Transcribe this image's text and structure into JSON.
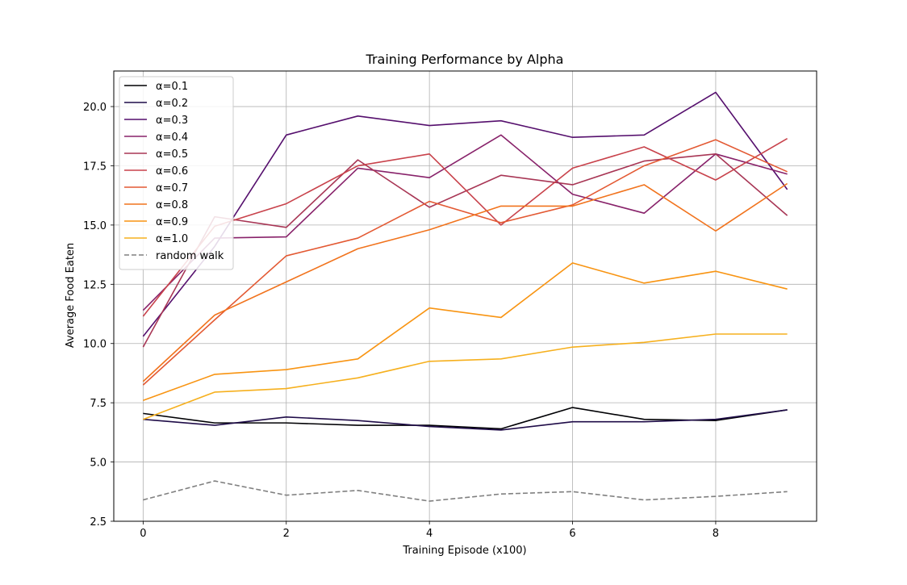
{
  "chart_data": {
    "type": "line",
    "title": "Training Performance by Alpha",
    "xlabel": "Training Episode (x100)",
    "ylabel": "Average Food Eaten",
    "x": [
      0,
      1,
      2,
      3,
      4,
      5,
      6,
      7,
      8,
      9
    ],
    "xlim": [
      -0.41,
      9.41
    ],
    "ylim": [
      2.5,
      21.5
    ],
    "xticks": [
      0,
      2,
      4,
      6,
      8
    ],
    "yticks": [
      2.5,
      5.0,
      7.5,
      10.0,
      12.5,
      15.0,
      17.5,
      20.0
    ],
    "grid": true,
    "legend_position": "top-left",
    "series": [
      {
        "name": "α=0.1",
        "color": "#000004",
        "dashed": false,
        "values": [
          7.05,
          6.65,
          6.65,
          6.55,
          6.55,
          6.4,
          7.3,
          6.8,
          6.75,
          7.2
        ]
      },
      {
        "name": "α=0.2",
        "color": "#1f0c48",
        "dashed": false,
        "values": [
          6.8,
          6.55,
          6.9,
          6.75,
          6.5,
          6.35,
          6.7,
          6.7,
          6.8,
          7.2
        ]
      },
      {
        "name": "α=0.3",
        "color": "#550f6d",
        "dashed": false,
        "values": [
          10.3,
          14.1,
          18.8,
          19.6,
          19.2,
          19.4,
          18.7,
          18.8,
          20.6,
          16.5
        ]
      },
      {
        "name": "α=0.4",
        "color": "#88226a",
        "dashed": false,
        "values": [
          11.4,
          14.45,
          14.5,
          17.4,
          17.0,
          18.8,
          16.3,
          15.5,
          18.0,
          17.15
        ]
      },
      {
        "name": "α=0.5",
        "color": "#a83655",
        "dashed": false,
        "values": [
          9.85,
          15.35,
          14.9,
          17.75,
          15.75,
          17.1,
          16.7,
          17.7,
          18.0,
          15.4
        ]
      },
      {
        "name": "α=0.6",
        "color": "#c8424b",
        "dashed": false,
        "values": [
          11.15,
          14.95,
          15.9,
          17.5,
          18.0,
          15.0,
          17.4,
          18.3,
          16.9,
          18.65
        ]
      },
      {
        "name": "α=0.7",
        "color": "#e35933",
        "dashed": false,
        "values": [
          8.25,
          11.0,
          13.7,
          14.45,
          16.0,
          15.1,
          15.85,
          17.5,
          18.6,
          17.25
        ]
      },
      {
        "name": "α=0.8",
        "color": "#f1731d",
        "dashed": false,
        "values": [
          8.4,
          11.2,
          12.6,
          14.0,
          14.8,
          15.8,
          15.8,
          16.7,
          14.75,
          16.75
        ]
      },
      {
        "name": "α=0.9",
        "color": "#f89412",
        "dashed": false,
        "values": [
          7.6,
          8.7,
          8.9,
          9.35,
          11.5,
          11.1,
          13.4,
          12.55,
          13.05,
          12.3
        ]
      },
      {
        "name": "α=1.0",
        "color": "#f6b01e",
        "dashed": false,
        "values": [
          6.8,
          7.95,
          8.1,
          8.55,
          9.25,
          9.35,
          9.85,
          10.05,
          10.4,
          10.4
        ]
      },
      {
        "name": "random walk",
        "color": "#808080",
        "dashed": true,
        "values": [
          3.4,
          4.2,
          3.6,
          3.8,
          3.35,
          3.65,
          3.75,
          3.4,
          3.55,
          3.75
        ]
      }
    ]
  }
}
